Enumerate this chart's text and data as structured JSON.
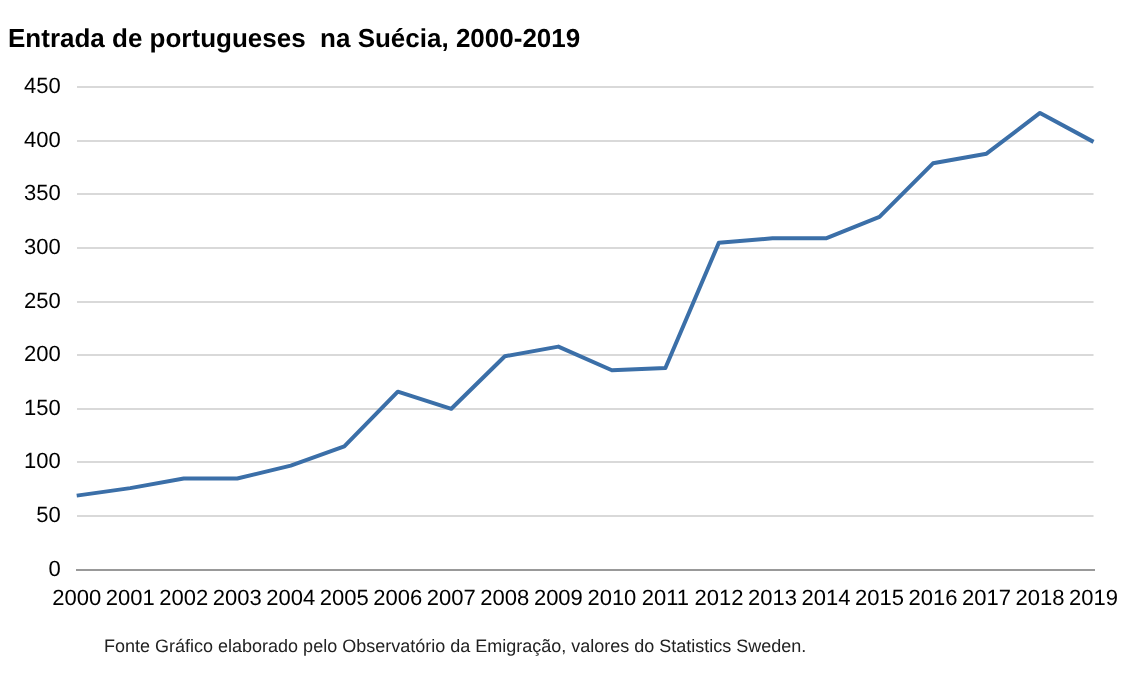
{
  "chart_data": {
    "type": "line",
    "title": "Entrada de portugueses  na Suécia, 2000-2019",
    "categories": [
      "2000",
      "2001",
      "2002",
      "2003",
      "2004",
      "2005",
      "2006",
      "2007",
      "2008",
      "2009",
      "2010",
      "2011",
      "2012",
      "2013",
      "2014",
      "2015",
      "2016",
      "2017",
      "2018",
      "2019"
    ],
    "series": [
      {
        "color": "#3b6fa8",
        "values": [
          69,
          76,
          85,
          85,
          97,
          115,
          166,
          150,
          199,
          208,
          186,
          188,
          305,
          309,
          309,
          329,
          379,
          388,
          426,
          399
        ]
      }
    ],
    "ylim": [
      0,
      450
    ],
    "yticks": [
      0,
      50,
      100,
      150,
      200,
      250,
      300,
      350,
      400,
      450
    ],
    "grid": "y",
    "legend": false,
    "marker": "none",
    "line_style": "solid",
    "annotations": [
      "Fonte  Gráfico elaborado pelo  Observatório da Emigração, valores do Statistics Sweden."
    ]
  }
}
